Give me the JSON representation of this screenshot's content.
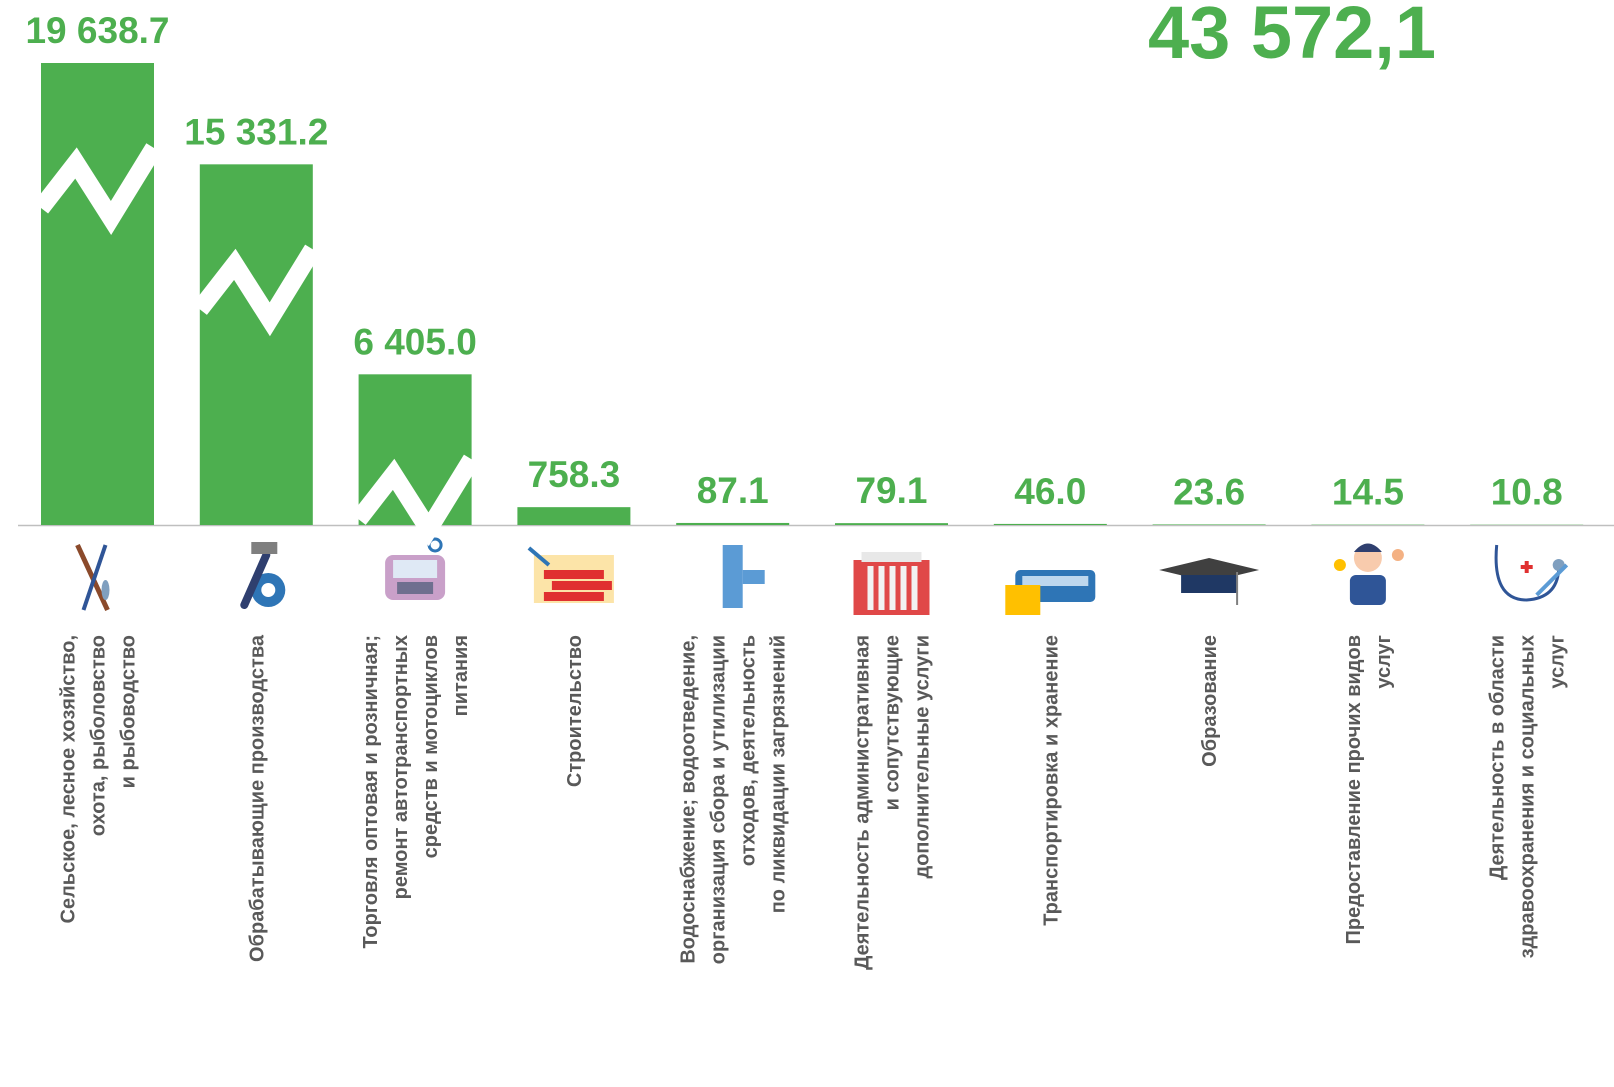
{
  "chart_data": {
    "type": "bar",
    "total": "43 572,1",
    "color": "#4daf4f",
    "categories": [
      "Сельское, лесное хозяйство,\nохота, рыболовство\nи рыбоводство",
      "Обрабатывающие производства",
      "Торговля оптовая и розничная;\nремонт автотранспортных\nсредств и мотоциклов\nпитания",
      "Строительство",
      "Водоснабжение; водоотведение,\nорганизация сбора и утилизации\nотходов, деятельность\nпо ликвидации загрязнений",
      "Деятельность административная\nи сопутствующие\nдополнительные услуги",
      "Транспортировка и хранение",
      "Образование",
      "Предоставление прочих видов\nуслуг",
      "Деятельность в области\nздравоохранения и социальных\nуслуг"
    ],
    "values": [
      19638.7,
      15331.2,
      6405.0,
      758.3,
      87.1,
      79.1,
      46.0,
      23.6,
      14.5,
      10.8
    ],
    "value_labels": [
      "19 638.7",
      "15 331.2",
      "6 405.0",
      "758.3",
      "87.1",
      "79.1",
      "46.0",
      "23.6",
      "14.5",
      "10.8"
    ]
  }
}
